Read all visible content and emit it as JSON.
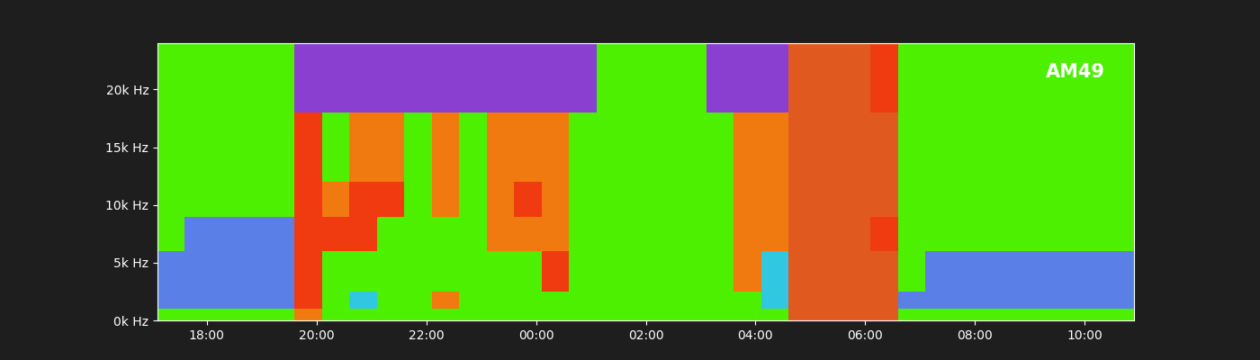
{
  "chart_data": {
    "type": "heatmap",
    "annotation": "AM49",
    "xlim": [
      17.1,
      34.9
    ],
    "xticks": [
      {
        "value": 18,
        "label": "18:00"
      },
      {
        "value": 20,
        "label": "20:00"
      },
      {
        "value": 22,
        "label": "22:00"
      },
      {
        "value": 24,
        "label": "00:00"
      },
      {
        "value": 26,
        "label": "02:00"
      },
      {
        "value": 28,
        "label": "04:00"
      },
      {
        "value": 30,
        "label": "06:00"
      },
      {
        "value": 32,
        "label": "08:00"
      },
      {
        "value": 34,
        "label": "10:00"
      }
    ],
    "ylim": [
      0,
      24000
    ],
    "yticks": [
      {
        "value": 0,
        "label": "0k Hz"
      },
      {
        "value": 5000,
        "label": "5k Hz"
      },
      {
        "value": 10000,
        "label": "10k Hz"
      },
      {
        "value": 15000,
        "label": "15k Hz"
      },
      {
        "value": 20000,
        "label": "20k Hz"
      }
    ],
    "x_edges": [
      17.1,
      17.6,
      18.1,
      18.6,
      19.1,
      19.6,
      20.1,
      20.6,
      21.1,
      21.6,
      22.1,
      22.6,
      23.1,
      23.6,
      24.1,
      24.6,
      25.1,
      25.6,
      26.1,
      26.6,
      27.1,
      27.6,
      28.1,
      28.6,
      29.1,
      29.6,
      30.1,
      30.6,
      31.1,
      31.6,
      32.1,
      32.6,
      33.1,
      33.6,
      34.1,
      34.6,
      34.9
    ],
    "y_edges": [
      0,
      1000,
      2500,
      6000,
      9000,
      12000,
      18000,
      24000
    ],
    "cells": [
      [
        "#4cf000",
        "#5a80e8",
        "#5a80e8",
        "#4cf000",
        "#4cf000",
        "#4cf000",
        "#4cf000"
      ],
      [
        "#4cf000",
        "#5a80e8",
        "#5a80e8",
        "#5a80e8",
        "#4cf000",
        "#4cf000",
        "#4cf000"
      ],
      [
        "#4cf000",
        "#5a80e8",
        "#5a80e8",
        "#5a80e8",
        "#4cf000",
        "#4cf000",
        "#4cf000"
      ],
      [
        "#4cf000",
        "#5a80e8",
        "#5a80e8",
        "#5a80e8",
        "#4cf000",
        "#4cf000",
        "#4cf000"
      ],
      [
        "#4cf000",
        "#5a80e8",
        "#5a80e8",
        "#5a80e8",
        "#4cf000",
        "#4cf000",
        "#4cf000"
      ],
      [
        "#f07a10",
        "#f03a10",
        "#f03a10",
        "#f03a10",
        "#f03a10",
        "#f03a10",
        "#8a3fd0"
      ],
      [
        "#4cf000",
        "#4cf000",
        "#4cf000",
        "#f03a10",
        "#f07a10",
        "#4cf000",
        "#8a3fd0"
      ],
      [
        "#4cf000",
        "#30c8e0",
        "#4cf000",
        "#f03a10",
        "#f03a10",
        "#f07a10",
        "#8a3fd0"
      ],
      [
        "#4cf000",
        "#4cf000",
        "#4cf000",
        "#4cf000",
        "#f03a10",
        "#f07a10",
        "#8a3fd0"
      ],
      [
        "#4cf000",
        "#4cf000",
        "#4cf000",
        "#4cf000",
        "#4cf000",
        "#4cf000",
        "#8a3fd0"
      ],
      [
        "#4cf000",
        "#f07a10",
        "#4cf000",
        "#4cf000",
        "#f07a10",
        "#f07a10",
        "#8a3fd0"
      ],
      [
        "#4cf000",
        "#4cf000",
        "#4cf000",
        "#4cf000",
        "#4cf000",
        "#4cf000",
        "#8a3fd0"
      ],
      [
        "#4cf000",
        "#4cf000",
        "#4cf000",
        "#f07a10",
        "#f07a10",
        "#f07a10",
        "#8a3fd0"
      ],
      [
        "#4cf000",
        "#4cf000",
        "#4cf000",
        "#f07a10",
        "#f03a10",
        "#f07a10",
        "#8a3fd0"
      ],
      [
        "#4cf000",
        "#4cf000",
        "#f03a10",
        "#f07a10",
        "#f07a10",
        "#f07a10",
        "#8a3fd0"
      ],
      [
        "#4cf000",
        "#4cf000",
        "#4cf000",
        "#4cf000",
        "#4cf000",
        "#4cf000",
        "#8a3fd0"
      ],
      [
        "#4cf000",
        "#4cf000",
        "#4cf000",
        "#4cf000",
        "#4cf000",
        "#4cf000",
        "#4cf000"
      ],
      [
        "#4cf000",
        "#4cf000",
        "#4cf000",
        "#4cf000",
        "#4cf000",
        "#4cf000",
        "#4cf000"
      ],
      [
        "#4cf000",
        "#4cf000",
        "#4cf000",
        "#4cf000",
        "#4cf000",
        "#4cf000",
        "#4cf000"
      ],
      [
        "#4cf000",
        "#4cf000",
        "#4cf000",
        "#4cf000",
        "#4cf000",
        "#4cf000",
        "#4cf000"
      ],
      [
        "#4cf000",
        "#4cf000",
        "#4cf000",
        "#4cf000",
        "#4cf000",
        "#4cf000",
        "#8a3fd0"
      ],
      [
        "#4cf000",
        "#4cf000",
        "#f07a10",
        "#f07a10",
        "#f07a10",
        "#f07a10",
        "#8a3fd0"
      ],
      [
        "#4cf000",
        "#30c8e0",
        "#30c8e0",
        "#f07a10",
        "#f07a10",
        "#f07a10",
        "#8a3fd0"
      ],
      [
        "#e05a20",
        "#e05a20",
        "#e05a20",
        "#e05a20",
        "#e05a20",
        "#e05a20",
        "#e05a20"
      ],
      [
        "#e05a20",
        "#e05a20",
        "#e05a20",
        "#e05a20",
        "#e05a20",
        "#e05a20",
        "#e05a20"
      ],
      [
        "#e05a20",
        "#e05a20",
        "#e05a20",
        "#e05a20",
        "#e05a20",
        "#e05a20",
        "#e05a20"
      ],
      [
        "#e05a20",
        "#e05a20",
        "#e05a20",
        "#f03a10",
        "#e05a20",
        "#e05a20",
        "#f03a10"
      ],
      [
        "#4cf000",
        "#5a80e8",
        "#4cf000",
        "#4cf000",
        "#4cf000",
        "#4cf000",
        "#4cf000"
      ],
      [
        "#4cf000",
        "#5a80e8",
        "#5a80e8",
        "#4cf000",
        "#4cf000",
        "#4cf000",
        "#4cf000"
      ],
      [
        "#4cf000",
        "#5a80e8",
        "#5a80e8",
        "#4cf000",
        "#4cf000",
        "#4cf000",
        "#4cf000"
      ],
      [
        "#4cf000",
        "#5a80e8",
        "#5a80e8",
        "#4cf000",
        "#4cf000",
        "#4cf000",
        "#4cf000"
      ],
      [
        "#4cf000",
        "#5a80e8",
        "#5a80e8",
        "#4cf000",
        "#4cf000",
        "#4cf000",
        "#4cf000"
      ],
      [
        "#4cf000",
        "#5a80e8",
        "#5a80e8",
        "#4cf000",
        "#4cf000",
        "#4cf000",
        "#4cf000"
      ],
      [
        "#4cf000",
        "#5a80e8",
        "#5a80e8",
        "#4cf000",
        "#4cf000",
        "#4cf000",
        "#4cf000"
      ],
      [
        "#4cf000",
        "#5a80e8",
        "#5a80e8",
        "#4cf000",
        "#4cf000",
        "#4cf000",
        "#4cf000"
      ],
      [
        "#4cf000",
        "#5a80e8",
        "#5a80e8",
        "#4cf000",
        "#4cf000",
        "#4cf000",
        "#4cf000"
      ]
    ]
  }
}
